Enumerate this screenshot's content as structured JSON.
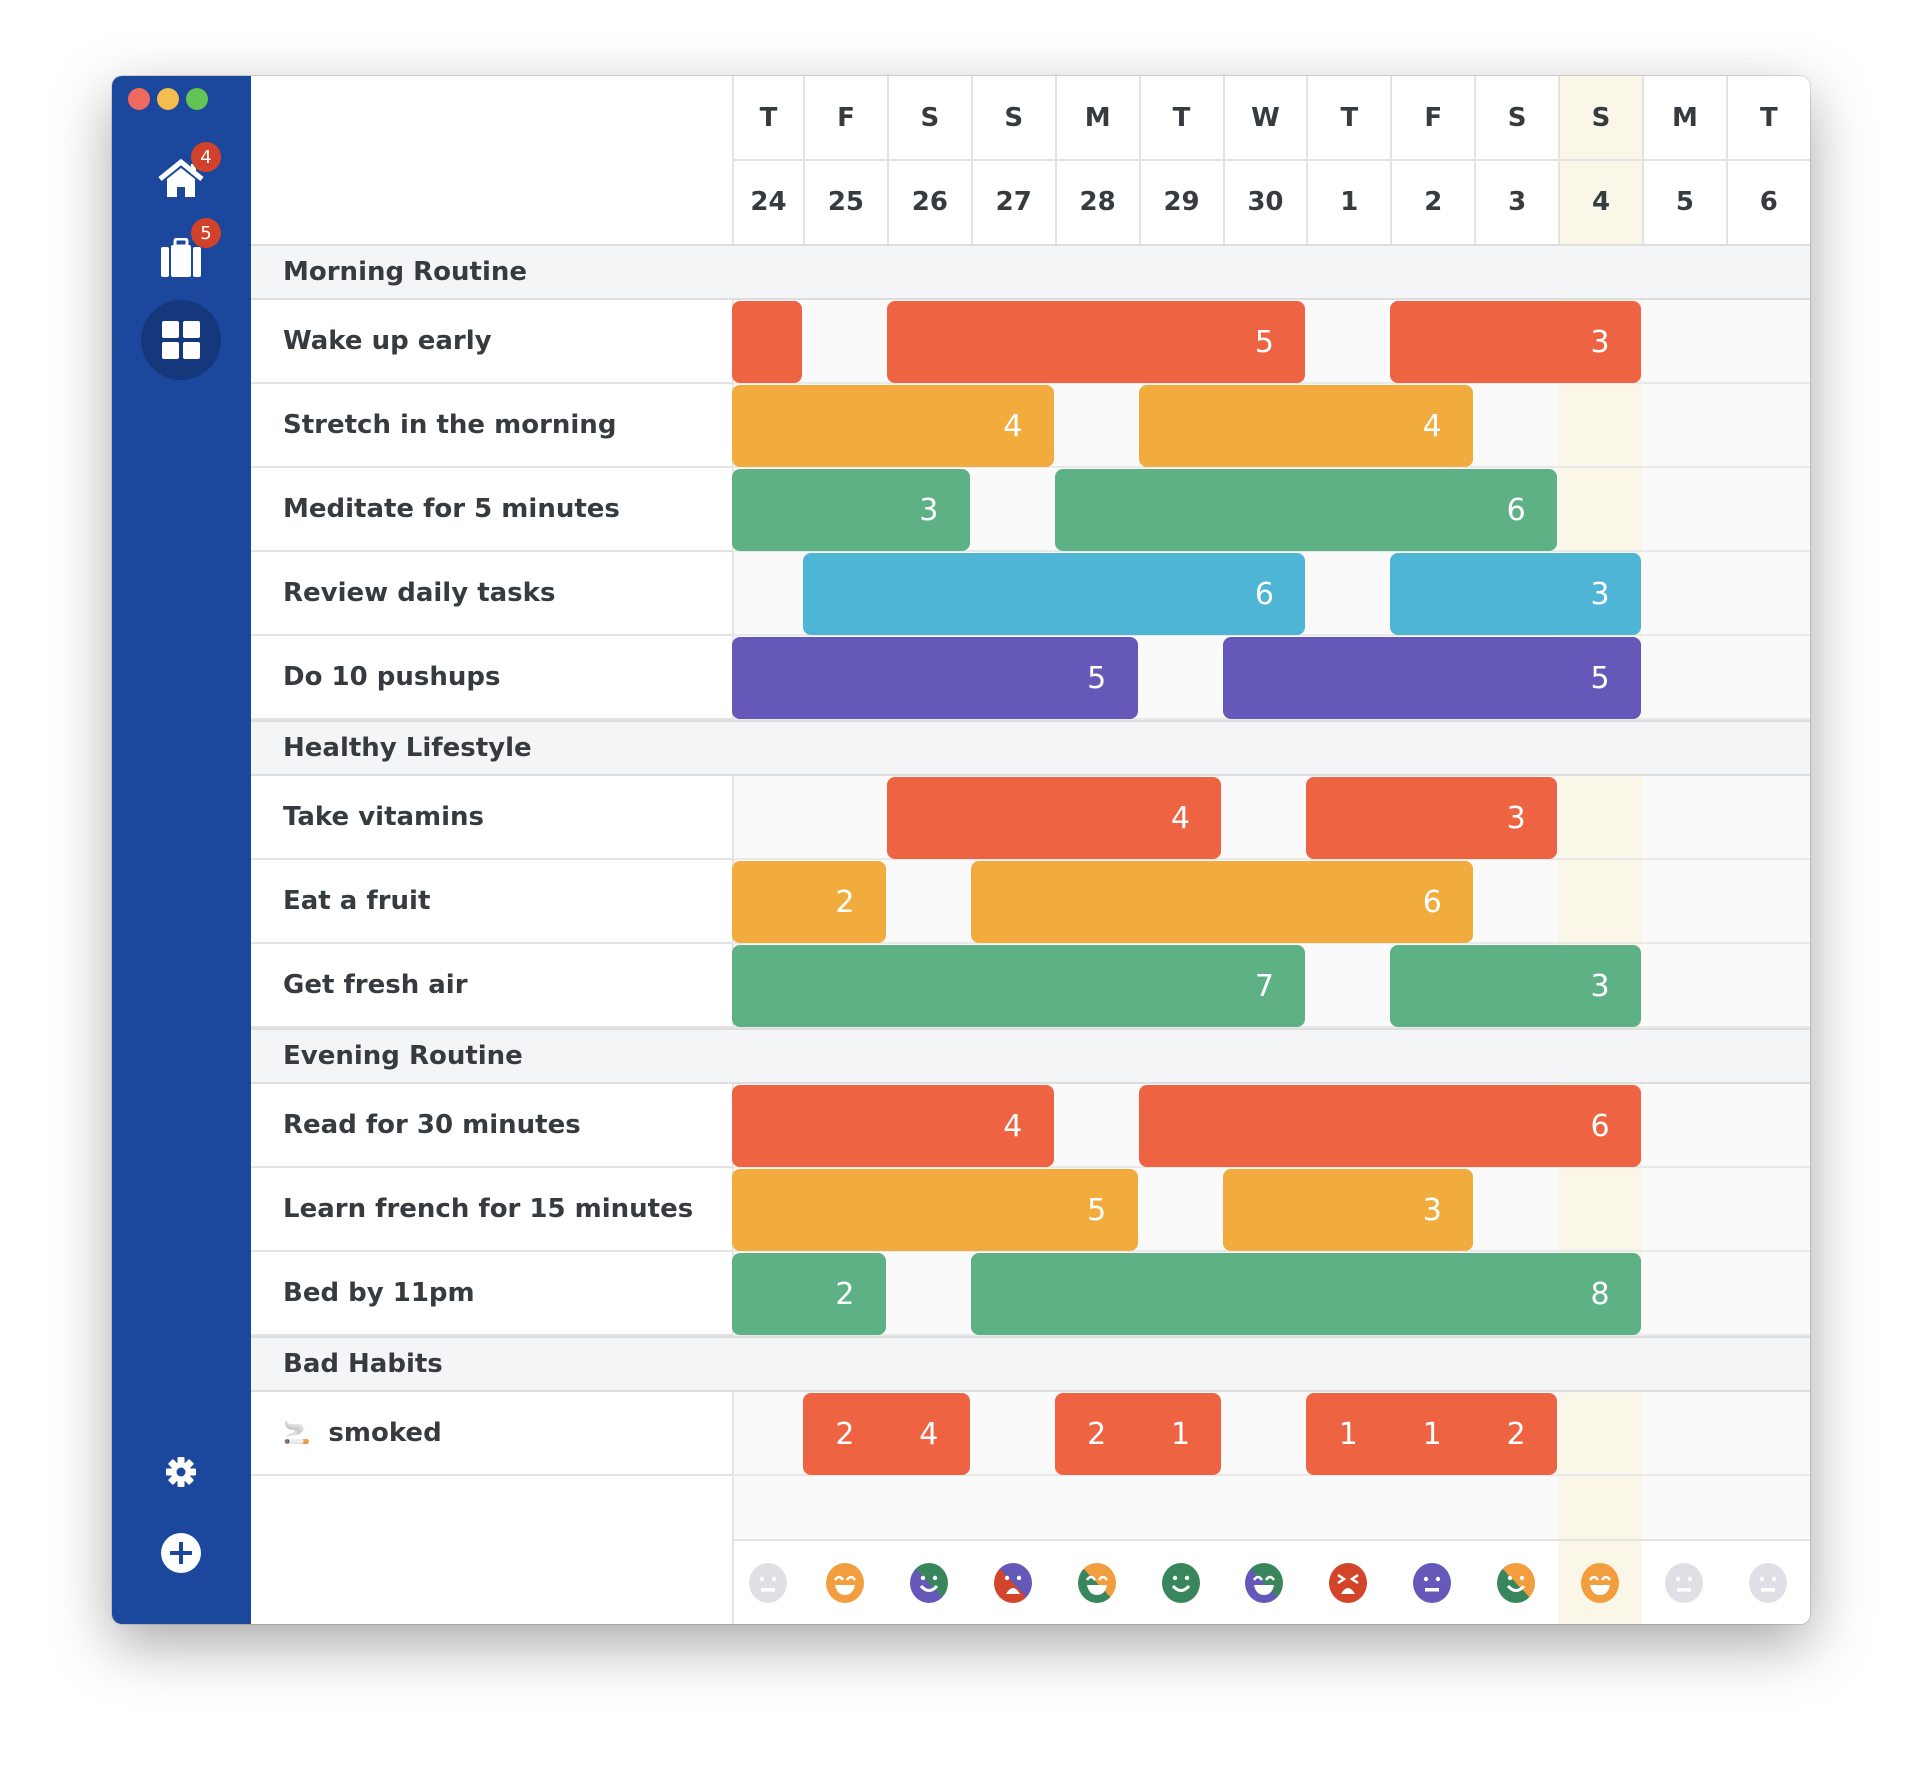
{
  "window_controls": {
    "close": "#ee6a5f",
    "minimize": "#f5bd4f",
    "zoom": "#61c454"
  },
  "sidebar": {
    "items": [
      {
        "icon": "home-icon",
        "badge": "4"
      },
      {
        "icon": "suitcase-icon",
        "badge": "5"
      },
      {
        "icon": "grid-icon",
        "active": true
      }
    ],
    "bottom": [
      {
        "icon": "gear-icon"
      },
      {
        "icon": "plus-circle-icon"
      }
    ]
  },
  "colors": {
    "red": "#ee6342",
    "orange": "#f2ac3e",
    "green": "#5db184",
    "blue": "#4fb5d6",
    "purple": "#6459b8",
    "today": "#fbf7e8",
    "sidebar": "#1b479c"
  },
  "days": [
    {
      "letter": "T",
      "date": "24"
    },
    {
      "letter": "F",
      "date": "25"
    },
    {
      "letter": "S",
      "date": "26"
    },
    {
      "letter": "S",
      "date": "27"
    },
    {
      "letter": "M",
      "date": "28"
    },
    {
      "letter": "T",
      "date": "29"
    },
    {
      "letter": "W",
      "date": "30"
    },
    {
      "letter": "T",
      "date": "1"
    },
    {
      "letter": "F",
      "date": "2"
    },
    {
      "letter": "S",
      "date": "3"
    },
    {
      "letter": "S",
      "date": "4",
      "today": true
    },
    {
      "letter": "M",
      "date": "5"
    },
    {
      "letter": "T",
      "date": "6"
    }
  ],
  "sections": [
    {
      "title": "Morning Routine",
      "habits": [
        {
          "name": "Wake up early",
          "color": "red",
          "streaks": [
            {
              "from": 0,
              "to": 0,
              "label": ""
            },
            {
              "from": 2,
              "to": 6,
              "label": "5"
            },
            {
              "from": 8,
              "to": 10,
              "label": "3"
            }
          ]
        },
        {
          "name": "Stretch in the morning",
          "color": "orange",
          "streaks": [
            {
              "from": 0,
              "to": 3,
              "label": "4"
            },
            {
              "from": 5,
              "to": 8,
              "label": "4"
            }
          ]
        },
        {
          "name": "Meditate for 5 minutes",
          "color": "green",
          "streaks": [
            {
              "from": 0,
              "to": 2,
              "label": "3"
            },
            {
              "from": 4,
              "to": 9,
              "label": "6"
            }
          ]
        },
        {
          "name": "Review daily tasks",
          "color": "blue",
          "streaks": [
            {
              "from": 1,
              "to": 6,
              "label": "6"
            },
            {
              "from": 8,
              "to": 10,
              "label": "3"
            }
          ]
        },
        {
          "name": "Do 10 pushups",
          "color": "purple",
          "streaks": [
            {
              "from": 0,
              "to": 4,
              "label": "5"
            },
            {
              "from": 6,
              "to": 10,
              "label": "5"
            }
          ]
        }
      ]
    },
    {
      "title": "Healthy Lifestyle",
      "habits": [
        {
          "name": "Take vitamins",
          "color": "red",
          "streaks": [
            {
              "from": 2,
              "to": 5,
              "label": "4"
            },
            {
              "from": 7,
              "to": 9,
              "label": "3"
            }
          ]
        },
        {
          "name": "Eat a fruit",
          "color": "orange",
          "streaks": [
            {
              "from": 0,
              "to": 1,
              "label": "2"
            },
            {
              "from": 3,
              "to": 8,
              "label": "6"
            }
          ]
        },
        {
          "name": "Get fresh air",
          "color": "green",
          "streaks": [
            {
              "from": 0,
              "to": 6,
              "label": "7"
            },
            {
              "from": 8,
              "to": 10,
              "label": "3"
            }
          ]
        }
      ]
    },
    {
      "title": "Evening Routine",
      "habits": [
        {
          "name": "Read for 30 minutes",
          "color": "red",
          "streaks": [
            {
              "from": 0,
              "to": 3,
              "label": "4"
            },
            {
              "from": 5,
              "to": 10,
              "label": "6"
            }
          ]
        },
        {
          "name": "Learn french for 15 minutes",
          "color": "orange",
          "streaks": [
            {
              "from": 0,
              "to": 4,
              "label": "5"
            },
            {
              "from": 6,
              "to": 8,
              "label": "3"
            }
          ]
        },
        {
          "name": "Bed by 11pm",
          "color": "green",
          "streaks": [
            {
              "from": 0,
              "to": 1,
              "label": "2"
            },
            {
              "from": 3,
              "to": 10,
              "label": "8"
            }
          ]
        }
      ]
    },
    {
      "title": "Bad Habits",
      "habits": [
        {
          "name": "smoked",
          "emoji": "🚬",
          "color": "red",
          "counts": true,
          "streaks": [
            {
              "from": 1,
              "to": 2,
              "values": [
                "2",
                "4"
              ]
            },
            {
              "from": 4,
              "to": 5,
              "values": [
                "2",
                "1"
              ]
            },
            {
              "from": 7,
              "to": 9,
              "values": [
                "1",
                "1",
                "2"
              ]
            }
          ]
        }
      ]
    }
  ],
  "moods": [
    {
      "face": "neutral",
      "colors": [
        "#dfe0e5"
      ]
    },
    {
      "face": "grin",
      "colors": [
        "#f29e3f"
      ]
    },
    {
      "face": "smile",
      "colors": [
        "#3a865c",
        "#6459b8"
      ]
    },
    {
      "face": "sad",
      "colors": [
        "#6459b8",
        "#d2452a"
      ]
    },
    {
      "face": "grin",
      "colors": [
        "#f29e3f",
        "#3a865c"
      ]
    },
    {
      "face": "smile",
      "colors": [
        "#3a865c"
      ]
    },
    {
      "face": "grin",
      "colors": [
        "#3a865c",
        "#6459b8"
      ]
    },
    {
      "face": "angry",
      "colors": [
        "#d2452a"
      ]
    },
    {
      "face": "neutral",
      "colors": [
        "#6459b8"
      ]
    },
    {
      "face": "smile",
      "colors": [
        "#f29e3f",
        "#3a865c"
      ]
    },
    {
      "face": "grin",
      "colors": [
        "#f29e3f"
      ]
    },
    {
      "face": "neutral",
      "colors": [
        "#dfe0e5"
      ]
    },
    {
      "face": "neutral",
      "colors": [
        "#dfe0e5"
      ]
    }
  ]
}
